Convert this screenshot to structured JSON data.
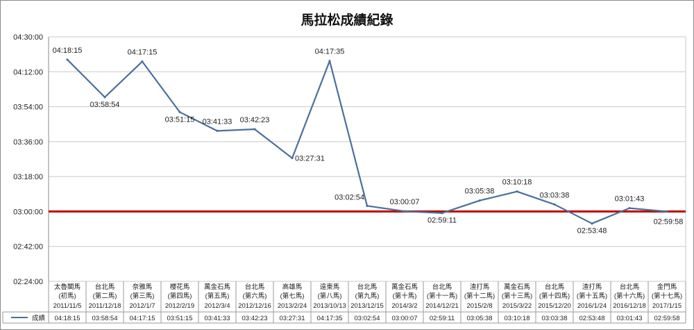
{
  "chart_data": {
    "type": "line",
    "title": "馬拉松成績紀錄",
    "xlabel": "",
    "ylabel": "",
    "ylim": [
      "02:24:00",
      "04:30:00"
    ],
    "yticks": [
      "04:30:00",
      "04:12:00",
      "03:54:00",
      "03:36:00",
      "03:18:00",
      "03:00:00",
      "02:42:00",
      "02:24:00"
    ],
    "grid": true,
    "legend": "table-left",
    "categories": [
      {
        "name": "太魯閣馬",
        "edition": "(初馬)",
        "date": "2011/11/5"
      },
      {
        "name": "台北馬",
        "edition": "(第二馬)",
        "date": "2011/12/18"
      },
      {
        "name": "奈雅馬",
        "edition": "(第三馬)",
        "date": "2012/1/7"
      },
      {
        "name": "櫻花馬",
        "edition": "(第四馬)",
        "date": "2012/2/19"
      },
      {
        "name": "萬金石馬",
        "edition": "(第五馬)",
        "date": "2012/3/4"
      },
      {
        "name": "台北馬",
        "edition": "(第六馬)",
        "date": "2012/12/16"
      },
      {
        "name": "高雄馬",
        "edition": "(第七馬)",
        "date": "2013/2/24"
      },
      {
        "name": "遠東馬",
        "edition": "(第八馬)",
        "date": "2013/10/13"
      },
      {
        "name": "台北馬",
        "edition": "(第九馬)",
        "date": "2013/12/15"
      },
      {
        "name": "萬金石馬",
        "edition": "(第十馬)",
        "date": "2014/3/2"
      },
      {
        "name": "台北馬",
        "edition": "(第十一馬)",
        "date": "2014/12/21"
      },
      {
        "name": "渣打馬",
        "edition": "(第十二馬)",
        "date": "2015/2/8"
      },
      {
        "name": "萬金石馬",
        "edition": "(第十三馬)",
        "date": "2015/3/22"
      },
      {
        "name": "台北馬",
        "edition": "(第十四馬)",
        "date": "2015/12/20"
      },
      {
        "name": "渣打馬",
        "edition": "(第十五馬)",
        "date": "2016/1/24"
      },
      {
        "name": "台北馬",
        "edition": "(第十六馬)",
        "date": "2016/12/18"
      },
      {
        "name": "金門馬",
        "edition": "(第十七馬)",
        "date": "2017/1/15"
      }
    ],
    "series": [
      {
        "name": "成績",
        "color": "#4a6f9c",
        "values": [
          "04:18:15",
          "03:58:54",
          "04:17:15",
          "03:51:15",
          "03:41:33",
          "03:42:23",
          "03:27:31",
          "04:17:35",
          "03:02:54",
          "03:00:07",
          "02:59:11",
          "03:05:38",
          "03:10:18",
          "03:03:38",
          "02:53:48",
          "03:01:43",
          "02:59:58"
        ]
      }
    ],
    "reference_line": {
      "value": "03:00:00",
      "color": "#c00000"
    },
    "colors": {
      "series": "#4a6f9c",
      "reference": "#c00000",
      "grid": "#c8c8c8"
    }
  }
}
